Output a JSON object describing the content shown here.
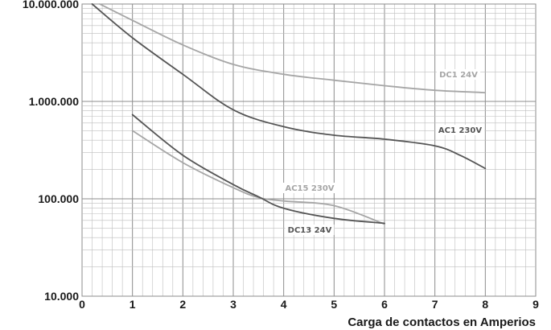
{
  "chart_data": {
    "type": "line",
    "xlabel": "Carga de contactos en Amperios",
    "ylabel": "",
    "xlim": [
      0,
      9
    ],
    "ylim": [
      10000,
      10000000
    ],
    "yscale": "log",
    "grid": true,
    "x_ticks": [
      "0",
      "1",
      "2",
      "3",
      "4",
      "5",
      "6",
      "7",
      "8",
      "9"
    ],
    "y_ticks": [
      {
        "value": 10000,
        "label": "10.000"
      },
      {
        "value": 100000,
        "label": "100.000"
      },
      {
        "value": 1000000,
        "label": "1.000.000"
      },
      {
        "value": 10000000,
        "label": "10.000.000"
      }
    ],
    "series": [
      {
        "name": "DC1 24V",
        "color": "#a6a6a6",
        "points": [
          [
            0.35,
            10000000
          ],
          [
            1,
            6800000
          ],
          [
            2,
            3800000
          ],
          [
            3,
            2400000
          ],
          [
            4,
            1900000
          ],
          [
            5,
            1650000
          ],
          [
            6,
            1450000
          ],
          [
            7,
            1300000
          ],
          [
            8,
            1230000
          ]
        ]
      },
      {
        "name": "AC1 230V",
        "color": "#555555",
        "points": [
          [
            0.2,
            10000000
          ],
          [
            1,
            4500000
          ],
          [
            2,
            1900000
          ],
          [
            3,
            820000
          ],
          [
            4,
            550000
          ],
          [
            5,
            450000
          ],
          [
            6,
            410000
          ],
          [
            7,
            350000
          ],
          [
            7.5,
            280000
          ],
          [
            8,
            205000
          ]
        ]
      },
      {
        "name": "AC15 230V",
        "color": "#a6a6a6",
        "points": [
          [
            1,
            500000
          ],
          [
            2,
            235000
          ],
          [
            3,
            130000
          ],
          [
            3.5,
            103000
          ],
          [
            4,
            95000
          ],
          [
            5,
            85000
          ],
          [
            6,
            55000
          ]
        ]
      },
      {
        "name": "DC13 24V",
        "color": "#555555",
        "points": [
          [
            1,
            730000
          ],
          [
            2,
            280000
          ],
          [
            3,
            140000
          ],
          [
            3.5,
            105000
          ],
          [
            4,
            80000
          ],
          [
            5,
            63000
          ],
          [
            6,
            56000
          ]
        ]
      }
    ]
  }
}
